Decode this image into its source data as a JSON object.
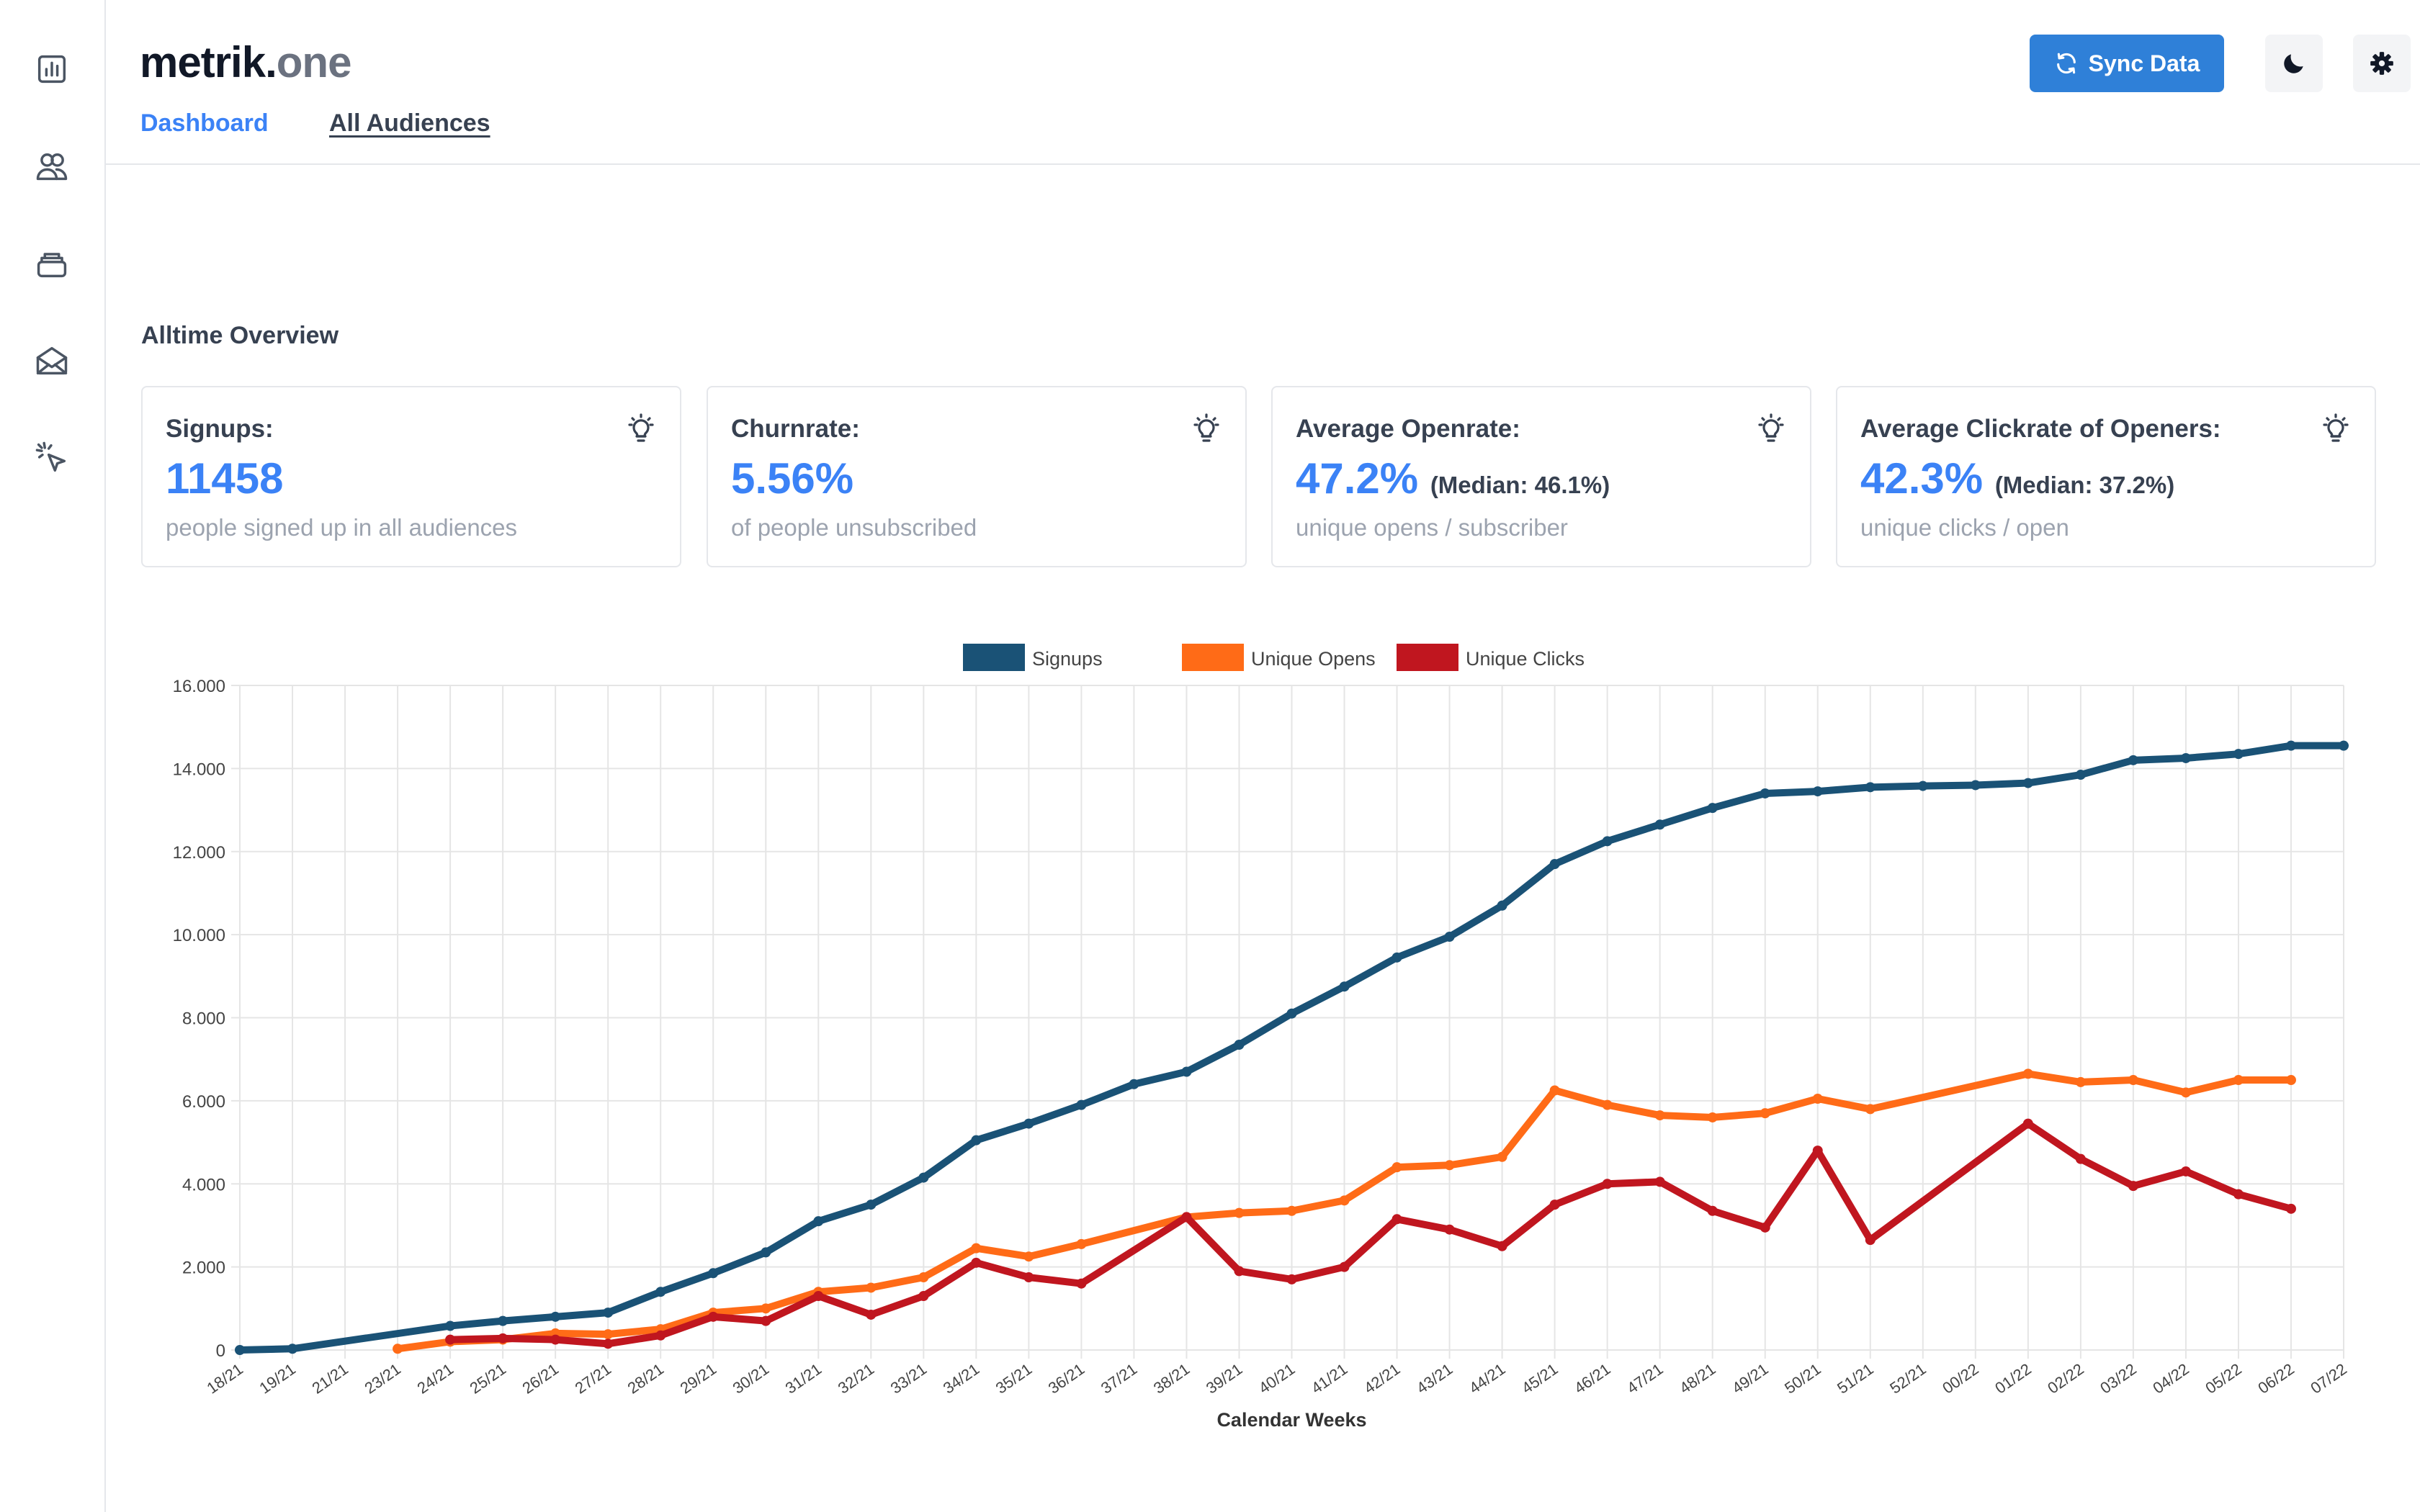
{
  "app": {
    "logo_main": "metrik.",
    "logo_suffix": "one",
    "tabs": [
      "Dashboard",
      "All Audiences"
    ],
    "sync_label": "Sync Data"
  },
  "sidebar": {
    "icons": [
      "chart-icon",
      "users-icon",
      "stack-icon",
      "mail-icon",
      "cursor-click-icon"
    ]
  },
  "overview": {
    "title": "Alltime Overview",
    "cards": [
      {
        "title": "Signups:",
        "value": "11458",
        "median": "",
        "subtitle": "people signed up in all audiences"
      },
      {
        "title": "Churnrate:",
        "value": "5.56%",
        "median": "",
        "subtitle": "of people unsubscribed"
      },
      {
        "title": "Average Openrate:",
        "value": "47.2%",
        "median": "(Median: 46.1%)",
        "subtitle": "unique opens / subscriber"
      },
      {
        "title": "Average Clickrate of Openers:",
        "value": "42.3%",
        "median": "(Median: 37.2%)",
        "subtitle": "unique clicks / open"
      }
    ]
  },
  "colors": {
    "accent": "#3b82f6",
    "button": "#2f80d8",
    "signups": "#1a5276",
    "opens": "#ff6b17",
    "clicks": "#c0161f"
  },
  "chart_data": {
    "type": "line",
    "xlabel": "Calendar Weeks",
    "ylabel": "",
    "ylim": [
      0,
      16000
    ],
    "yticks": [
      "0",
      "2.000",
      "4.000",
      "6.000",
      "8.000",
      "10.000",
      "12.000",
      "14.000",
      "16.000"
    ],
    "categories": [
      "18/21",
      "19/21",
      "21/21",
      "23/21",
      "24/21",
      "25/21",
      "26/21",
      "27/21",
      "28/21",
      "29/21",
      "30/21",
      "31/21",
      "32/21",
      "33/21",
      "34/21",
      "35/21",
      "36/21",
      "37/21",
      "38/21",
      "39/21",
      "40/21",
      "41/21",
      "42/21",
      "43/21",
      "44/21",
      "45/21",
      "46/21",
      "47/21",
      "48/21",
      "49/21",
      "50/21",
      "51/21",
      "52/21",
      "00/22",
      "01/22",
      "02/22",
      "03/22",
      "04/22",
      "05/22",
      "06/22",
      "07/22"
    ],
    "legend_position": "top",
    "grid": true,
    "series": [
      {
        "name": "Signups",
        "color": "#1a5276",
        "values": [
          0,
          30,
          null,
          null,
          580,
          700,
          800,
          900,
          1400,
          1850,
          2350,
          3100,
          3500,
          4150,
          5050,
          5450,
          5900,
          6400,
          6700,
          7350,
          8100,
          8750,
          9450,
          9950,
          10700,
          11700,
          12250,
          12650,
          13050,
          13400,
          13450,
          13550,
          13580,
          13600,
          13650,
          13850,
          14200,
          14250,
          14350,
          14550,
          14550
        ]
      },
      {
        "name": "Unique Opens",
        "color": "#ff6b17",
        "values": [
          null,
          null,
          null,
          30,
          200,
          250,
          400,
          380,
          500,
          900,
          1000,
          1400,
          1500,
          1750,
          2450,
          2250,
          2550,
          null,
          3200,
          3300,
          3350,
          3600,
          4400,
          4450,
          4650,
          6250,
          5900,
          5650,
          5600,
          5700,
          6050,
          5800,
          null,
          null,
          6650,
          6450,
          6500,
          6200,
          6500,
          6500,
          null
        ]
      },
      {
        "name": "Unique Clicks",
        "color": "#c0161f",
        "values": [
          null,
          null,
          null,
          null,
          250,
          280,
          250,
          150,
          350,
          800,
          700,
          1300,
          850,
          1300,
          2100,
          1750,
          1600,
          null,
          3200,
          1900,
          1700,
          2000,
          3150,
          2900,
          2500,
          3500,
          4000,
          4050,
          3350,
          2950,
          4800,
          2650,
          null,
          null,
          5450,
          4600,
          3950,
          4300,
          3750,
          3400,
          null
        ]
      }
    ]
  }
}
